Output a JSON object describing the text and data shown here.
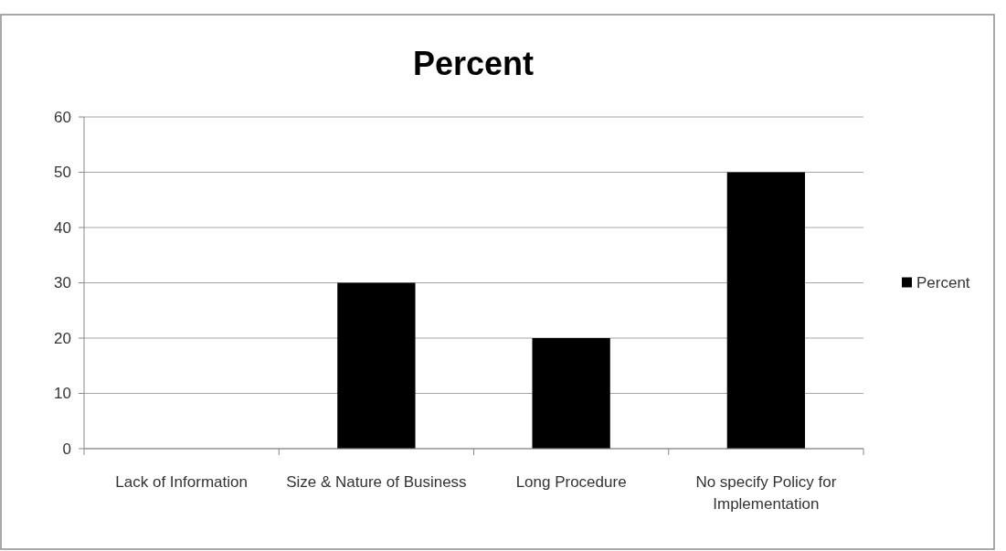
{
  "chart_data": {
    "type": "bar",
    "title": "Percent",
    "categories": [
      "Lack of Information",
      "Size & Nature of Business",
      "Long Procedure",
      "No specify Policy for Implementation"
    ],
    "series": [
      {
        "name": "Percent",
        "color": "#000000",
        "values": [
          0,
          30,
          20,
          50
        ]
      }
    ],
    "ylim": [
      0,
      60
    ],
    "yticks": [
      0,
      10,
      20,
      30,
      40,
      50,
      60
    ],
    "grid": "y",
    "legend": "right"
  }
}
